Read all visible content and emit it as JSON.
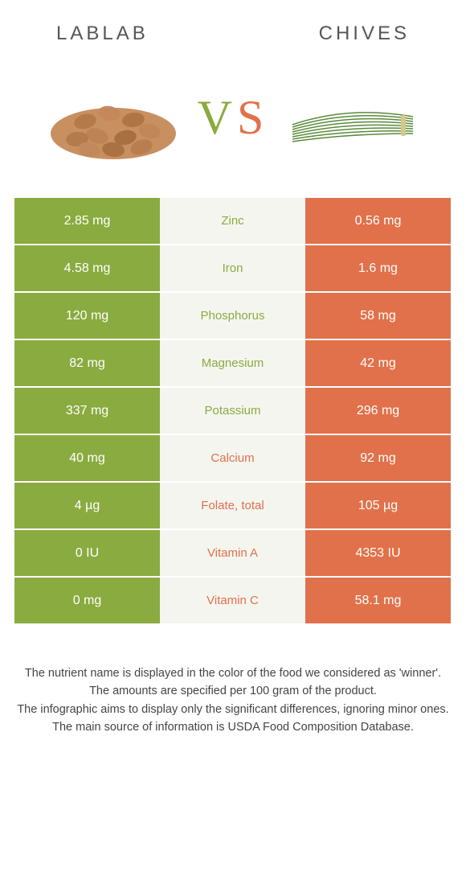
{
  "header": {
    "left_label": "LABLAB",
    "right_label": "CHIVES"
  },
  "vs": {
    "v": "V",
    "s": "S"
  },
  "colors": {
    "green": "#8aab3f",
    "orange": "#e1714a",
    "mid_bg": "#f5f5f0"
  },
  "rows": [
    {
      "left": "2.85 mg",
      "mid": "Zinc",
      "right": "0.56 mg",
      "winner": "left"
    },
    {
      "left": "4.58 mg",
      "mid": "Iron",
      "right": "1.6 mg",
      "winner": "left"
    },
    {
      "left": "120 mg",
      "mid": "Phosphorus",
      "right": "58 mg",
      "winner": "left"
    },
    {
      "left": "82 mg",
      "mid": "Magnesium",
      "right": "42 mg",
      "winner": "left"
    },
    {
      "left": "337 mg",
      "mid": "Potassium",
      "right": "296 mg",
      "winner": "left"
    },
    {
      "left": "40 mg",
      "mid": "Calcium",
      "right": "92 mg",
      "winner": "right"
    },
    {
      "left": "4 µg",
      "mid": "Folate, total",
      "right": "105 µg",
      "winner": "right"
    },
    {
      "left": "0 IU",
      "mid": "Vitamin A",
      "right": "4353 IU",
      "winner": "right"
    },
    {
      "left": "0 mg",
      "mid": "Vitamin C",
      "right": "58.1 mg",
      "winner": "right"
    }
  ],
  "footer": {
    "line1": "The nutrient name is displayed in the color of the food we considered as 'winner'.",
    "line2": "The amounts are specified per 100 gram of the product.",
    "line3": "The infographic aims to display only the significant differences, ignoring minor ones.",
    "line4": "The main source of information is USDA Food Composition Database."
  }
}
